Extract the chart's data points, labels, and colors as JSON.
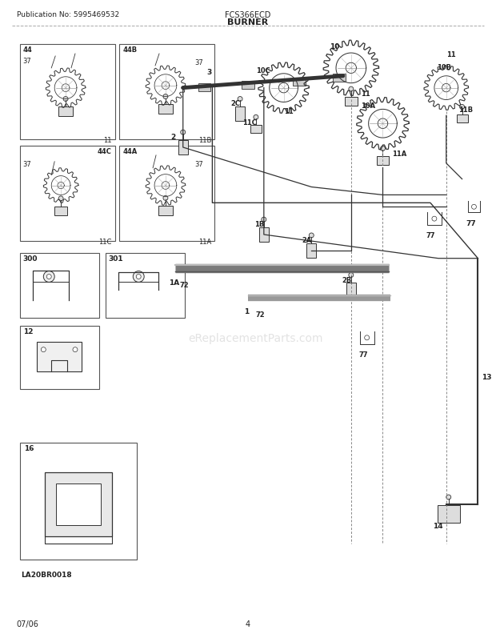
{
  "publication": "Publication No: 5995469532",
  "model": "FCS366ECD",
  "title": "BURNER",
  "footer_date": "07/06",
  "footer_page": "4",
  "watermark": "eReplacementParts.com",
  "bg_color": "#ffffff",
  "gray": "#888888",
  "dark": "#333333",
  "med": "#666666"
}
